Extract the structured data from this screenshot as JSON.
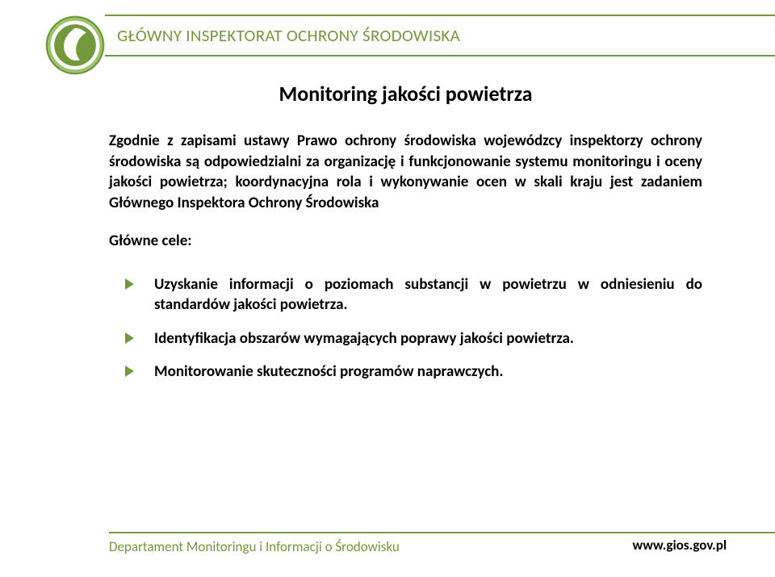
{
  "colors": {
    "accent": "#739a3a",
    "header_text": "#739a3a",
    "footer_text": "#739a3a",
    "line": "#739a3a",
    "bullet": "#739a3a",
    "logo_ring_light": "#9cc26a",
    "logo_green_dark": "#567a2a",
    "logo_white": "#ffffff"
  },
  "header": {
    "org_name": "GŁÓWNY INSPEKTORAT OCHRONY ŚRODOWISKA"
  },
  "document": {
    "title": "Monitoring jakości powietrza",
    "intro": "Zgodnie z zapisami ustawy Prawo ochrony środowiska wojewódzcy inspektorzy ochrony środowiska są odpowiedzialni za organizację i funkcjonowanie systemu monitoringu i oceny jakości powietrza; koordynacyjna rola i wykonywanie ocen w skali kraju jest zadaniem Głównego Inspektora Ochrony Środowiska",
    "goals_label": "Główne cele:",
    "bullets": [
      "Uzyskanie informacji o poziomach substancji w powietrzu w odniesieniu do standardów jakości powietrza.",
      "Identyfikacja obszarów wymagających poprawy jakości powietrza.",
      "Monitorowanie skuteczności programów naprawczych."
    ]
  },
  "footer": {
    "department": "Departament Monitoringu i Informacji o Środowisku",
    "url": "www.gios.gov.pl"
  },
  "typography": {
    "header_fontsize": 21,
    "title_fontsize": 26,
    "body_fontsize": 19,
    "footer_fontsize": 17
  }
}
